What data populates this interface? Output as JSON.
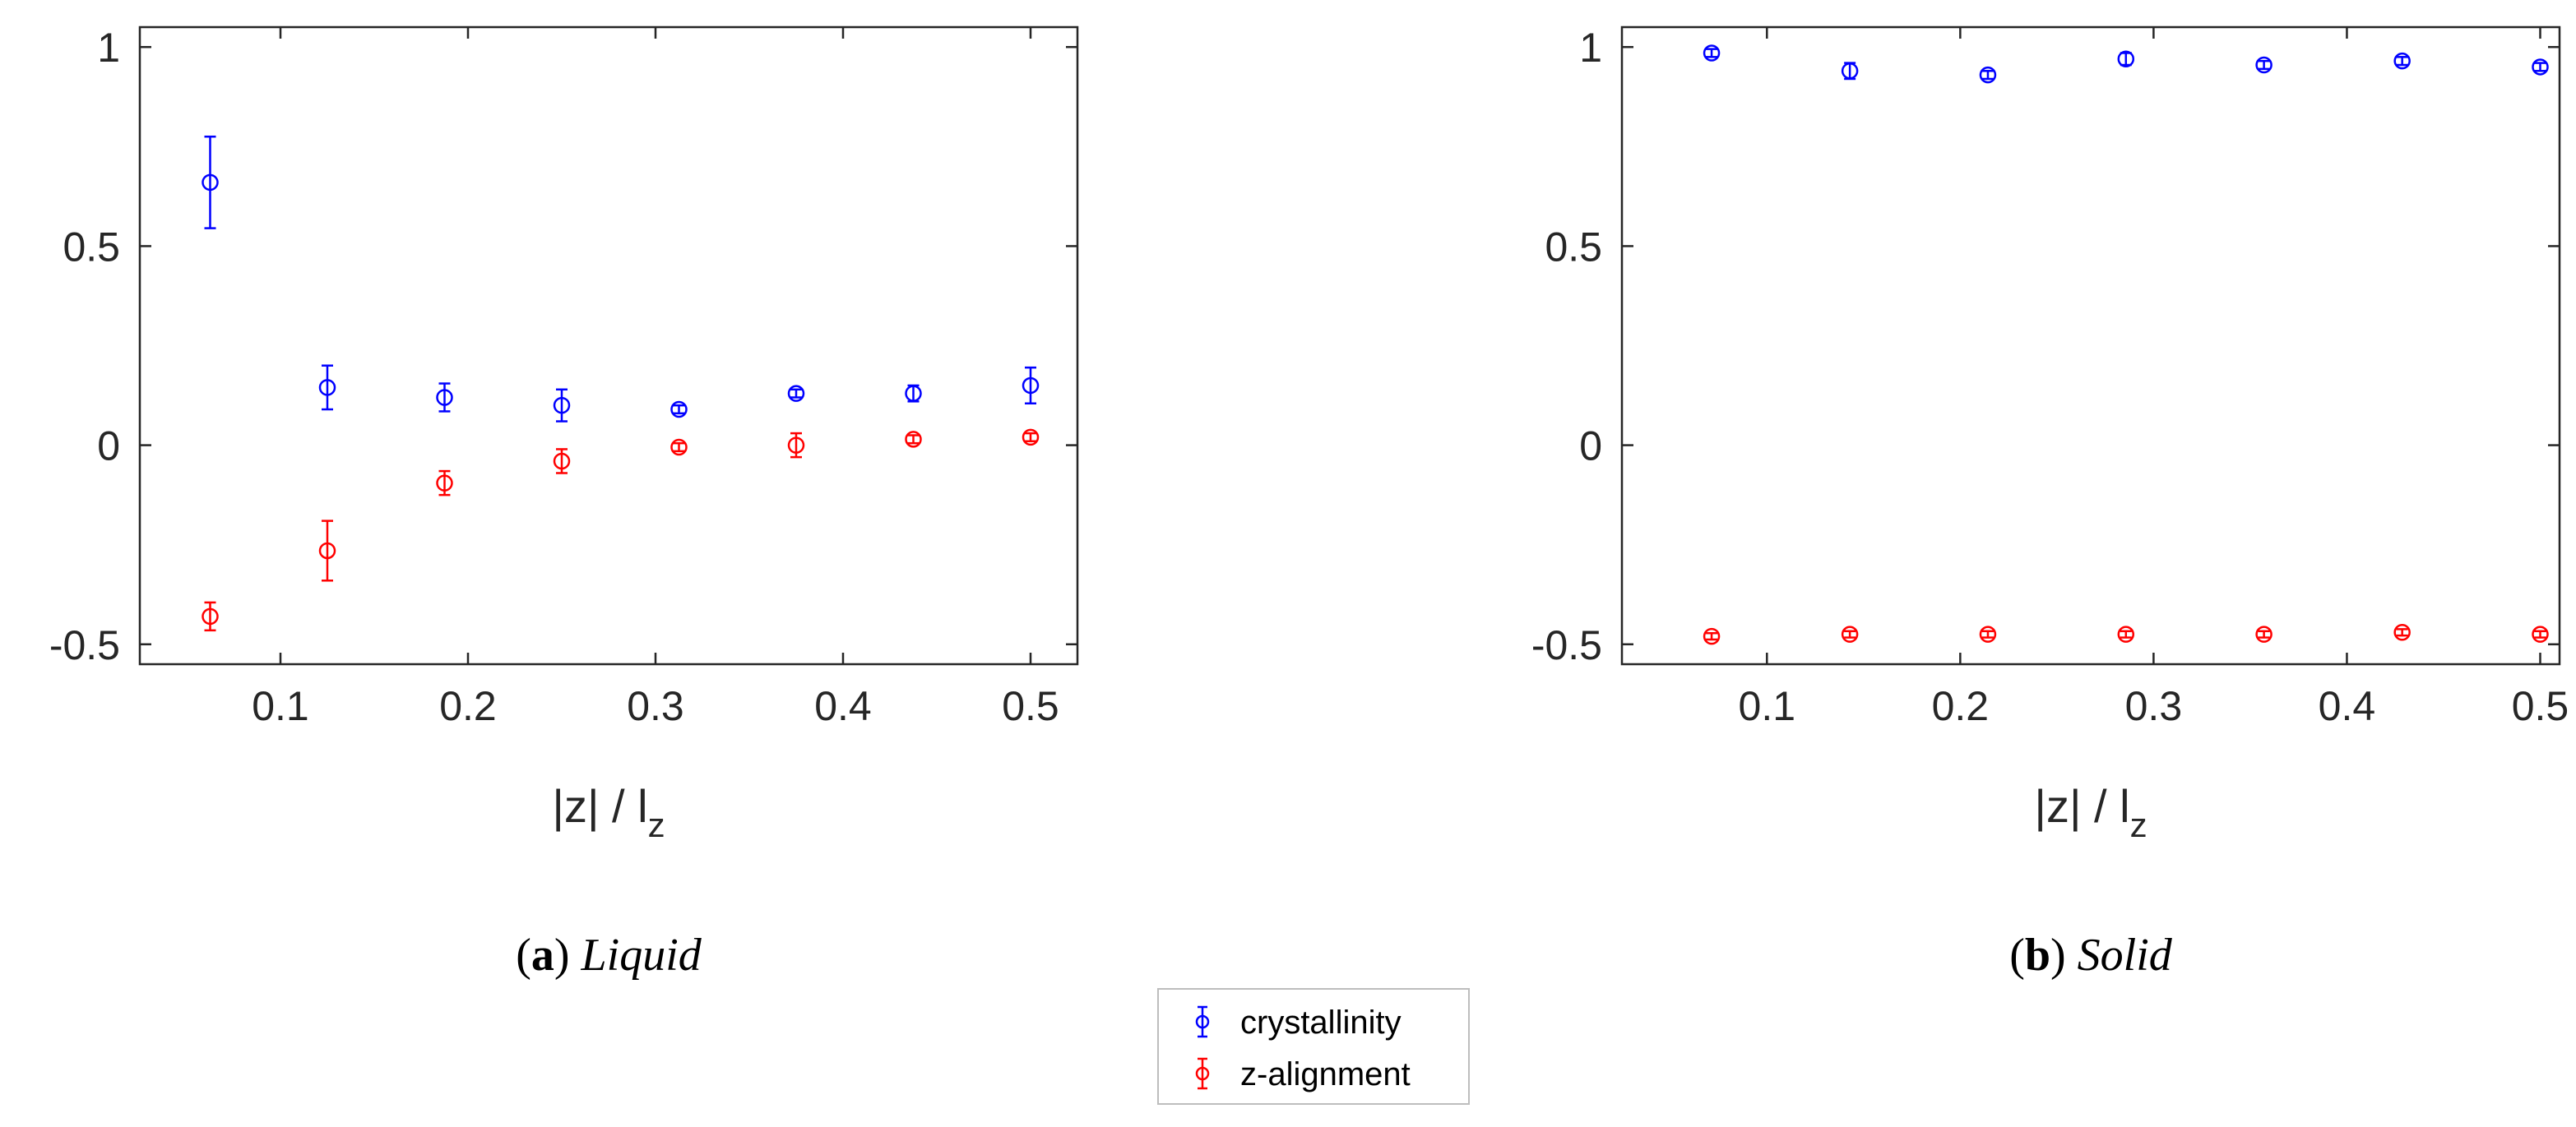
{
  "chart_data": [
    {
      "type": "scatter",
      "caption_letter": "a",
      "caption_title": "Liquid",
      "xlabel_main": "|z| / l",
      "xlabel_sub": "z",
      "ylabel": "",
      "xlim": [
        0.025,
        0.525
      ],
      "ylim": [
        -0.55,
        1.05
      ],
      "xticks": [
        0.1,
        0.2,
        0.3,
        0.4,
        0.5
      ],
      "xtick_labels": [
        "0.1",
        "0.2",
        "0.3",
        "0.4",
        "0.5"
      ],
      "yticks": [
        -0.5,
        0,
        0.5,
        1
      ],
      "ytick_labels": [
        "-0.5",
        "0",
        "0.5",
        "1"
      ],
      "series": [
        {
          "name": "crystallinity",
          "color": "#0000ff",
          "x": [
            0.0625,
            0.125,
            0.1875,
            0.25,
            0.3125,
            0.375,
            0.4375,
            0.5
          ],
          "y": [
            0.66,
            0.145,
            0.12,
            0.1,
            0.09,
            0.13,
            0.13,
            0.15
          ],
          "err": [
            0.115,
            0.055,
            0.035,
            0.04,
            0.01,
            0.01,
            0.02,
            0.045
          ]
        },
        {
          "name": "z-alignment",
          "color": "#ff0000",
          "x": [
            0.0625,
            0.125,
            0.1875,
            0.25,
            0.3125,
            0.375,
            0.4375,
            0.5
          ],
          "y": [
            -0.43,
            -0.265,
            -0.095,
            -0.04,
            -0.005,
            0.0,
            0.015,
            0.02
          ],
          "err": [
            0.035,
            0.075,
            0.03,
            0.03,
            0.01,
            0.03,
            0.01,
            0.01
          ]
        }
      ]
    },
    {
      "type": "scatter",
      "caption_letter": "b",
      "caption_title": "Solid",
      "xlabel_main": "|z| / l",
      "xlabel_sub": "z",
      "ylabel": "",
      "xlim": [
        0.025,
        0.51
      ],
      "ylim": [
        -0.55,
        1.05
      ],
      "xticks": [
        0.1,
        0.2,
        0.3,
        0.4,
        0.5
      ],
      "xtick_labels": [
        "0.1",
        "0.2",
        "0.3",
        "0.4",
        "0.5"
      ],
      "yticks": [
        -0.5,
        0,
        0.5,
        1
      ],
      "ytick_labels": [
        "-0.5",
        "0",
        "0.5",
        "1"
      ],
      "series": [
        {
          "name": "crystallinity",
          "color": "#0000ff",
          "x": [
            0.0714,
            0.1429,
            0.2143,
            0.2857,
            0.3571,
            0.4286,
            0.5
          ],
          "y": [
            0.985,
            0.94,
            0.93,
            0.97,
            0.955,
            0.965,
            0.95
          ],
          "err": [
            0.01,
            0.02,
            0.01,
            0.015,
            0.01,
            0.01,
            0.01
          ]
        },
        {
          "name": "z-alignment",
          "color": "#ff0000",
          "x": [
            0.0714,
            0.1429,
            0.2143,
            0.2857,
            0.3571,
            0.4286,
            0.5
          ],
          "y": [
            -0.48,
            -0.475,
            -0.475,
            -0.475,
            -0.475,
            -0.47,
            -0.475
          ],
          "err": [
            0.008,
            0.008,
            0.008,
            0.008,
            0.008,
            0.008,
            0.008
          ]
        }
      ]
    }
  ],
  "legend": {
    "entries": [
      {
        "label": "crystallinity",
        "color": "#0000ff"
      },
      {
        "label": "z-alignment",
        "color": "#ff0000"
      }
    ]
  }
}
